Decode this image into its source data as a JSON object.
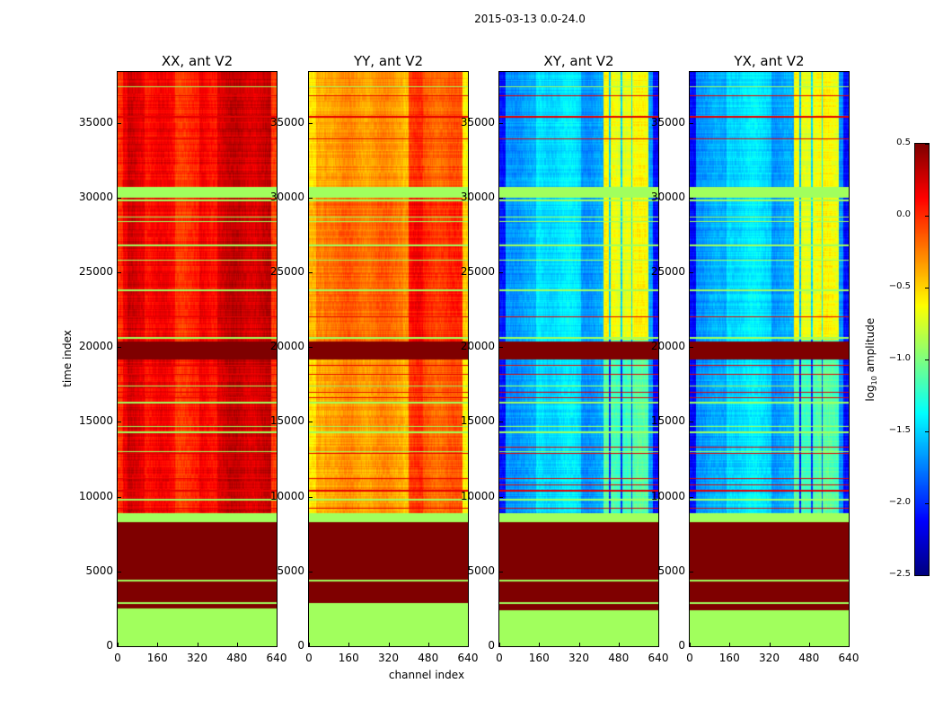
{
  "chart_data": {
    "type": "heatmap",
    "title": "2015-03-13 0.0-24.0",
    "xlabel": "channel index",
    "ylabel": "time index",
    "xlim": [
      0,
      640
    ],
    "ylim": [
      0,
      38400
    ],
    "xticks": [
      "0",
      "160",
      "320",
      "480",
      "640"
    ],
    "xtick_values": [
      0,
      160,
      320,
      480,
      640
    ],
    "yticks": [
      "0",
      "5000",
      "10000",
      "15000",
      "20000",
      "25000",
      "30000",
      "35000"
    ],
    "ytick_values": [
      0,
      5000,
      10000,
      15000,
      20000,
      25000,
      30000,
      35000
    ],
    "colorbar": {
      "label_parts": [
        "log",
        "10",
        " amplitude"
      ],
      "cmap": "jet",
      "range": [
        -2.5,
        0.5
      ],
      "ticks": [
        "0.5",
        "0.0",
        "−0.5",
        "−1.0",
        "−1.5",
        "−2.0",
        "−2.5"
      ],
      "tick_values": [
        0.5,
        0.0,
        -0.5,
        -1.0,
        -1.5,
        -2.0,
        -2.5
      ]
    },
    "flagged_value": -0.9,
    "saturated_value": 0.5,
    "panels": [
      {
        "title": "XX, ant V2",
        "base": 0.12,
        "column_features": [
          [
            0,
            20,
            -0.15,
            0,
            38400
          ],
          [
            40,
            110,
            0.12,
            0,
            38400
          ],
          [
            230,
            330,
            -0.12,
            0,
            38400
          ],
          [
            400,
            620,
            0.15,
            0,
            38400
          ],
          [
            620,
            640,
            -0.2,
            0,
            38400
          ]
        ],
        "bands": [
          [
            0,
            2500,
            -0.9
          ],
          [
            2500,
            8300,
            0.5
          ],
          [
            2850,
            2950,
            -0.9
          ],
          [
            4350,
            4450,
            -0.9
          ],
          [
            8300,
            8900,
            -0.9
          ],
          [
            8400,
            8600,
            0.3
          ],
          [
            19200,
            20400,
            0.5
          ],
          [
            30000,
            30700,
            -0.9
          ]
        ],
        "flag_lines": [
          9800,
          13000,
          14300,
          14700,
          16300,
          17400,
          20600,
          23800,
          25800,
          26800,
          28400,
          28700,
          29800,
          37400
        ],
        "hot_lines": [
          9200,
          10400,
          11200,
          12900,
          16600,
          17000,
          18200,
          18800,
          22000,
          33900,
          35400,
          36800
        ]
      },
      {
        "title": "YY, ant V2",
        "base": -0.4,
        "column_features": [
          [
            0,
            30,
            -0.2,
            0,
            38400
          ],
          [
            60,
            380,
            0.08,
            0,
            38400
          ],
          [
            400,
            460,
            0.35,
            0,
            38400
          ],
          [
            460,
            620,
            0.25,
            0,
            38400
          ],
          [
            620,
            640,
            -0.2,
            0,
            38400
          ]
        ],
        "bands": [
          [
            0,
            2900,
            -0.9
          ],
          [
            2900,
            8300,
            0.5
          ],
          [
            4350,
            4450,
            -0.9
          ],
          [
            8300,
            8900,
            -0.9
          ],
          [
            19200,
            20400,
            0.5
          ],
          [
            20400,
            30000,
            0.15
          ],
          [
            30000,
            30700,
            -0.9
          ]
        ],
        "flag_lines": [
          9800,
          13000,
          14300,
          14700,
          16300,
          17400,
          20600,
          23800,
          25800,
          26800,
          28400,
          28700,
          29800,
          37400
        ],
        "hot_lines": [
          9200,
          10400,
          11200,
          12900,
          16600,
          17000,
          18200,
          18800,
          22000,
          33900,
          35400,
          36800
        ]
      },
      {
        "title": "XY, ant V2",
        "base": -1.65,
        "column_features": [
          [
            0,
            25,
            -0.45,
            0,
            38400
          ],
          [
            150,
            330,
            0.2,
            0,
            38400
          ],
          [
            420,
            600,
            1.0,
            20500,
            38400
          ],
          [
            420,
            600,
            0.5,
            8300,
            20500
          ],
          [
            440,
            448,
            -0.9,
            0,
            38400
          ],
          [
            488,
            494,
            -0.8,
            0,
            38400
          ],
          [
            530,
            536,
            -0.8,
            0,
            38400
          ],
          [
            620,
            640,
            -0.4,
            0,
            38400
          ]
        ],
        "bands": [
          [
            0,
            2400,
            -0.9
          ],
          [
            2400,
            8300,
            0.5
          ],
          [
            2850,
            2950,
            -0.9
          ],
          [
            4350,
            4450,
            -0.9
          ],
          [
            8300,
            8900,
            -0.9
          ],
          [
            19200,
            20400,
            0.5
          ],
          [
            30000,
            30700,
            -0.9
          ]
        ],
        "flag_lines": [
          9800,
          13000,
          14300,
          14700,
          16300,
          17400,
          20600,
          23800,
          25800,
          26800,
          28400,
          28700,
          29800,
          37400
        ],
        "hot_lines": [
          9200,
          10400,
          10800,
          11200,
          12900,
          13300,
          16600,
          17000,
          18200,
          18800,
          22000,
          33900,
          35400,
          36800
        ]
      },
      {
        "title": "YX, ant V2",
        "base": -1.65,
        "column_features": [
          [
            0,
            25,
            -0.45,
            0,
            38400
          ],
          [
            150,
            330,
            0.2,
            0,
            38400
          ],
          [
            420,
            600,
            1.0,
            20500,
            38400
          ],
          [
            420,
            600,
            0.5,
            8300,
            20500
          ],
          [
            440,
            448,
            -0.9,
            0,
            38400
          ],
          [
            488,
            494,
            -0.8,
            0,
            38400
          ],
          [
            530,
            536,
            -0.8,
            0,
            38400
          ],
          [
            620,
            640,
            -0.4,
            0,
            38400
          ]
        ],
        "bands": [
          [
            0,
            2400,
            -0.9
          ],
          [
            2400,
            8300,
            0.5
          ],
          [
            2850,
            2950,
            -0.9
          ],
          [
            4350,
            4450,
            -0.9
          ],
          [
            8300,
            8900,
            -0.9
          ],
          [
            19200,
            20400,
            0.5
          ],
          [
            30000,
            30700,
            -0.9
          ]
        ],
        "flag_lines": [
          9800,
          13000,
          14300,
          14700,
          16300,
          17400,
          20600,
          23800,
          25800,
          26800,
          28400,
          28700,
          29800,
          37400
        ],
        "hot_lines": [
          9200,
          10400,
          10800,
          11200,
          12900,
          13300,
          16600,
          17000,
          18200,
          18800,
          22000,
          33900,
          35400,
          36800
        ]
      }
    ]
  }
}
